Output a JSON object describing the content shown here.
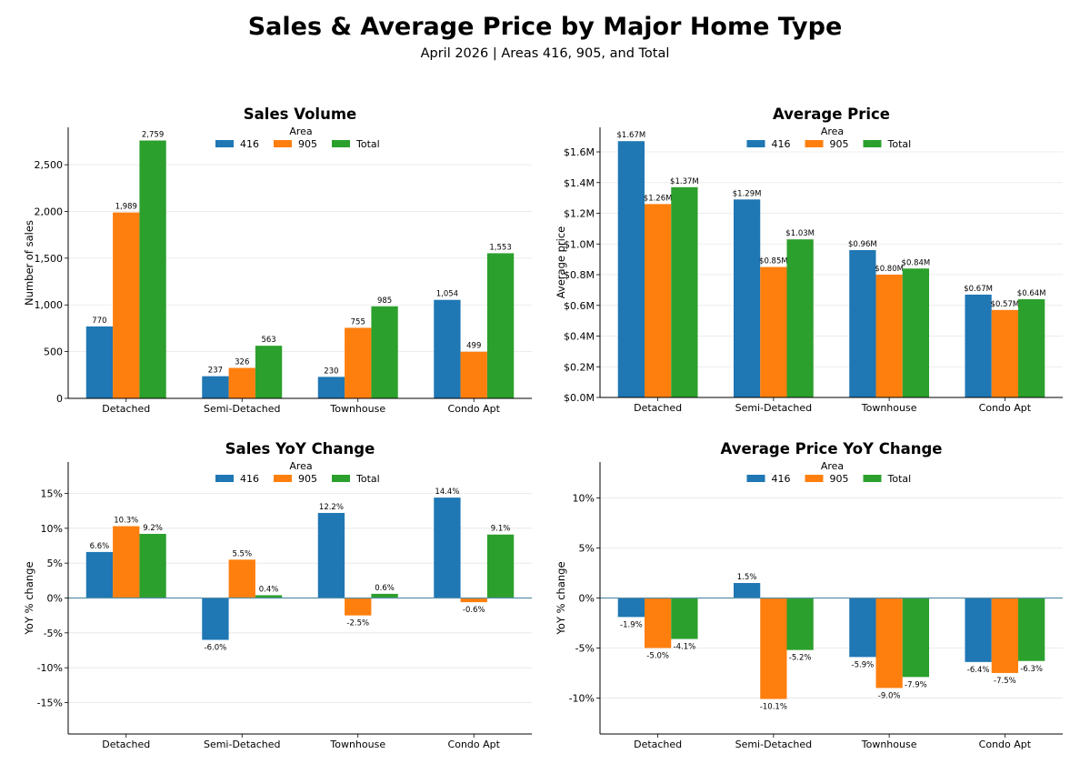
{
  "title": "Sales & Average Price by Major Home Type",
  "subtitle": "April 2026 | Areas 416, 905, and Total",
  "colors": {
    "416": "#1f77b4",
    "905": "#ff7f0e",
    "Total": "#2ca02c"
  },
  "chart_data": [
    {
      "type": "bar",
      "title": "Sales Volume",
      "xlabel": "",
      "ylabel": "Number of sales",
      "ylim": [
        0,
        2900
      ],
      "yticks": [
        0,
        500,
        1000,
        1500,
        2000,
        2500
      ],
      "ytick_labels": [
        "0",
        "500",
        "1,000",
        "1,500",
        "2,000",
        "2,500"
      ],
      "grid": true,
      "legend_title": "Area",
      "legend_position": "top-center",
      "categories": [
        "Detached",
        "Semi-Detached",
        "Townhouse",
        "Condo Apt"
      ],
      "series": [
        {
          "name": "416",
          "values": [
            770,
            237,
            230,
            1054
          ],
          "labels": [
            "770",
            "237",
            "230",
            "1,054"
          ]
        },
        {
          "name": "905",
          "values": [
            1989,
            326,
            755,
            499
          ],
          "labels": [
            "1,989",
            "326",
            "755",
            "499"
          ]
        },
        {
          "name": "Total",
          "values": [
            2759,
            563,
            985,
            1553
          ],
          "labels": [
            "2,759",
            "563",
            "985",
            "1,553"
          ]
        }
      ]
    },
    {
      "type": "bar",
      "title": "Average Price",
      "xlabel": "",
      "ylabel": "Average price",
      "ylim": [
        0,
        1760000
      ],
      "yticks": [
        0,
        200000,
        400000,
        600000,
        800000,
        1000000,
        1200000,
        1400000,
        1600000
      ],
      "ytick_labels": [
        "$0.0M",
        "$0.2M",
        "$0.4M",
        "$0.6M",
        "$0.8M",
        "$1.0M",
        "$1.2M",
        "$1.4M",
        "$1.6M"
      ],
      "grid": true,
      "legend_title": "Area",
      "legend_position": "top-center",
      "categories": [
        "Detached",
        "Semi-Detached",
        "Townhouse",
        "Condo Apt"
      ],
      "series": [
        {
          "name": "416",
          "values": [
            1670000,
            1290000,
            960000,
            670000
          ],
          "labels": [
            "$1.67M",
            "$1.29M",
            "$0.96M",
            "$0.67M"
          ]
        },
        {
          "name": "905",
          "values": [
            1260000,
            850000,
            800000,
            570000
          ],
          "labels": [
            "$1.26M",
            "$0.85M",
            "$0.80M",
            "$0.57M"
          ]
        },
        {
          "name": "Total",
          "values": [
            1370000,
            1030000,
            840000,
            640000
          ],
          "labels": [
            "$1.37M",
            "$1.03M",
            "$0.84M",
            "$0.64M"
          ]
        }
      ]
    },
    {
      "type": "bar",
      "title": "Sales YoY Change",
      "xlabel": "",
      "ylabel": "YoY % change",
      "ylim": [
        -19.5,
        19.5
      ],
      "yticks": [
        -15,
        -10,
        -5,
        0,
        5,
        10,
        15
      ],
      "ytick_labels": [
        "-15%",
        "-10%",
        "-5%",
        "0%",
        "5%",
        "10%",
        "15%"
      ],
      "grid": true,
      "zero_line": true,
      "legend_title": "Area",
      "legend_position": "top-center",
      "categories": [
        "Detached",
        "Semi-Detached",
        "Townhouse",
        "Condo Apt"
      ],
      "series": [
        {
          "name": "416",
          "values": [
            6.6,
            -6.0,
            12.2,
            14.4
          ],
          "labels": [
            "6.6%",
            "-6.0%",
            "12.2%",
            "14.4%"
          ]
        },
        {
          "name": "905",
          "values": [
            10.3,
            5.5,
            -2.5,
            -0.6
          ],
          "labels": [
            "10.3%",
            "5.5%",
            "-2.5%",
            "-0.6%"
          ]
        },
        {
          "name": "Total",
          "values": [
            9.2,
            0.4,
            0.6,
            9.1
          ],
          "labels": [
            "9.2%",
            "0.4%",
            "0.6%",
            "9.1%"
          ]
        }
      ]
    },
    {
      "type": "bar",
      "title": "Average Price YoY Change",
      "xlabel": "",
      "ylabel": "YoY % change",
      "ylim": [
        -13.6,
        13.6
      ],
      "yticks": [
        -10,
        -5,
        0,
        5,
        10
      ],
      "ytick_labels": [
        "-10%",
        "-5%",
        "0%",
        "5%",
        "10%"
      ],
      "grid": true,
      "zero_line": true,
      "legend_title": "Area",
      "legend_position": "top-center",
      "categories": [
        "Detached",
        "Semi-Detached",
        "Townhouse",
        "Condo Apt"
      ],
      "series": [
        {
          "name": "416",
          "values": [
            -1.9,
            1.5,
            -5.9,
            -6.4
          ],
          "labels": [
            "-1.9%",
            "1.5%",
            "-5.9%",
            "-6.4%"
          ]
        },
        {
          "name": "905",
          "values": [
            -5.0,
            -10.1,
            -9.0,
            -7.5
          ],
          "labels": [
            "-5.0%",
            "-10.1%",
            "-9.0%",
            "-7.5%"
          ]
        },
        {
          "name": "Total",
          "values": [
            -4.1,
            -5.2,
            -7.9,
            -6.3
          ],
          "labels": [
            "-4.1%",
            "-5.2%",
            "-7.9%",
            "-6.3%"
          ]
        }
      ]
    }
  ]
}
